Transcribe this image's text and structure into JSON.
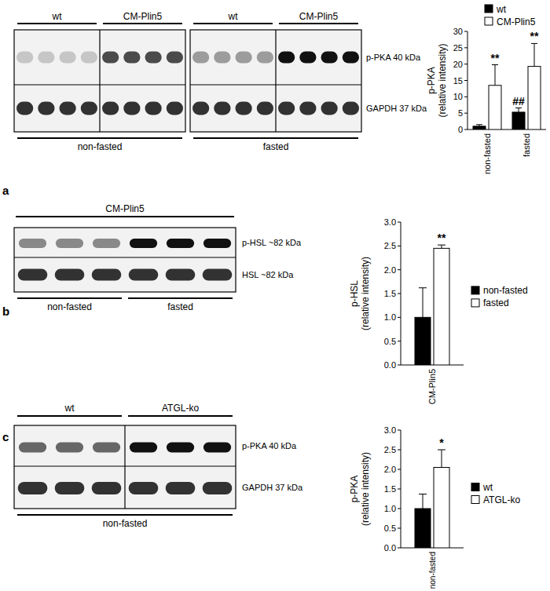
{
  "panel_labels": [
    "a",
    "b",
    "c"
  ],
  "blots": [
    {
      "rows": [
        "p-PKA 40 kDa",
        "GAPDH 37 kDa"
      ],
      "panels": [
        {
          "groups": [
            "wt",
            "CM-Plin5"
          ],
          "condition": "non-fasted"
        },
        {
          "groups": [
            "wt",
            "CM-Plin5"
          ],
          "condition": "fasted"
        }
      ]
    },
    {
      "rows": [
        "p-HSL ~82 kDa",
        "HSL ~82 kDa"
      ],
      "header": "CM-Plin5",
      "conditions": [
        "non-fasted",
        "fasted"
      ]
    },
    {
      "rows": [
        "p-PKA 40 kDa",
        "GAPDH 37 kDa"
      ],
      "groups": [
        "wt",
        "ATGL-ko"
      ],
      "condition": "non-fasted"
    }
  ],
  "chart_data": [
    {
      "type": "bar",
      "ylabel": [
        "p-PKA",
        "(relative intensity)"
      ],
      "categories": [
        "non-fasted",
        "fasted"
      ],
      "series": [
        {
          "name": "wt",
          "color": "#000000",
          "values": [
            1.0,
            5.3
          ],
          "errors": [
            0.5,
            1.3
          ],
          "annotations": [
            null,
            "##"
          ]
        },
        {
          "name": "CM-Plin5",
          "color": "#ffffff",
          "values": [
            13.5,
            19.3
          ],
          "errors": [
            6.3,
            7.0
          ],
          "annotations": [
            "**",
            "**"
          ]
        }
      ],
      "ylim": [
        0,
        30
      ],
      "yticks": [
        0,
        5,
        10,
        15,
        20,
        25,
        30
      ],
      "grid": false,
      "legend": "top right"
    },
    {
      "type": "bar",
      "ylabel": [
        "p-HSL",
        "(relative intensity)"
      ],
      "categories": [
        "CM-Plin5"
      ],
      "series": [
        {
          "name": "non-fasted",
          "color": "#000000",
          "values": [
            1.0
          ],
          "errors": [
            0.62
          ],
          "annotations": [
            null
          ]
        },
        {
          "name": "fasted",
          "color": "#ffffff",
          "values": [
            2.45
          ],
          "errors": [
            0.07
          ],
          "annotations": [
            "**"
          ]
        }
      ],
      "ylim": [
        0,
        3
      ],
      "yticks": [
        {
          "value": 0,
          "label": "0.0"
        },
        {
          "value": 0.5,
          "label": "0.5"
        },
        {
          "value": 1,
          "label": "1.0"
        },
        {
          "value": 1.5,
          "label": "1.5"
        },
        {
          "value": 2,
          "label": "2.0"
        },
        {
          "value": 2.5,
          "label": "2.5"
        },
        {
          "value": 3,
          "label": "3.0"
        }
      ],
      "grid": false,
      "legend": "right"
    },
    {
      "type": "bar",
      "ylabel": [
        "p-PKA",
        "(relative intensity)"
      ],
      "categories": [
        "non-fasted"
      ],
      "series": [
        {
          "name": "wt",
          "color": "#000000",
          "values": [
            1.0
          ],
          "errors": [
            0.37
          ],
          "annotations": [
            null
          ]
        },
        {
          "name": "ATGL-ko",
          "color": "#ffffff",
          "values": [
            2.05
          ],
          "errors": [
            0.45
          ],
          "annotations": [
            "*"
          ]
        }
      ],
      "ylim": [
        0,
        3
      ],
      "yticks": [
        {
          "value": 0,
          "label": "0.0"
        },
        {
          "value": 0.5,
          "label": "0.5"
        },
        {
          "value": 1,
          "label": "1.0"
        },
        {
          "value": 1.5,
          "label": "1.5"
        },
        {
          "value": 2,
          "label": "2.0"
        },
        {
          "value": 2.5,
          "label": "2.5"
        },
        {
          "value": 3,
          "label": "3.0"
        }
      ],
      "grid": false,
      "legend": "right"
    }
  ]
}
